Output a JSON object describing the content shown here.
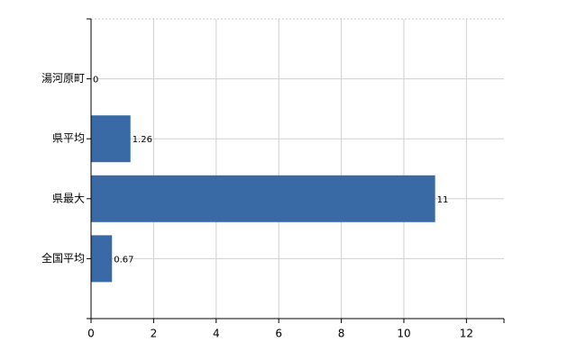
{
  "chart_data": {
    "type": "hbar",
    "categories": [
      "湯河原町",
      "県平均",
      "県最大",
      "全国平均"
    ],
    "values": [
      0,
      1.26,
      11,
      0.67
    ],
    "color": "#3a6aa6",
    "xlim": [
      0,
      13.2
    ],
    "xticks": [
      0,
      2,
      4,
      6,
      8,
      10,
      12
    ],
    "grid": true
  }
}
